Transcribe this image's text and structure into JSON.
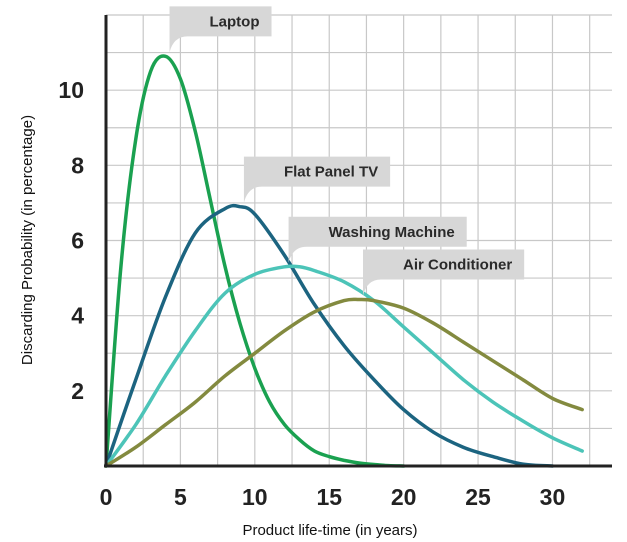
{
  "chart_data": {
    "type": "line",
    "title": "",
    "xlabel": "Product life-time (in years)",
    "ylabel": "Discarding Probability (in percentage)",
    "xlim": [
      0,
      34
    ],
    "ylim": [
      0,
      12
    ],
    "x_ticks": [
      "0",
      "5",
      "10",
      "15",
      "20",
      "25",
      "30"
    ],
    "y_ticks": [
      "2",
      "4",
      "6",
      "8",
      "10"
    ],
    "grid": true,
    "legend": "callout labels at each curve peak",
    "series": [
      {
        "name": "Laptop",
        "color": "#1aa150",
        "x": [
          0,
          1,
          2,
          3,
          4,
          5,
          6,
          7,
          8,
          9,
          10,
          11,
          12,
          13,
          14,
          15,
          16,
          17,
          18,
          19,
          20
        ],
        "values": [
          0,
          5.3,
          8.7,
          10.5,
          10.9,
          10.3,
          8.9,
          7.1,
          5.3,
          3.8,
          2.6,
          1.7,
          1.1,
          0.7,
          0.4,
          0.25,
          0.15,
          0.08,
          0.04,
          0.01,
          0
        ]
      },
      {
        "name": "Flat Panel TV",
        "color": "#1c6480",
        "x": [
          0,
          2,
          4,
          6,
          8,
          9,
          10,
          12,
          14,
          16,
          18,
          20,
          22,
          24,
          26,
          28,
          30
        ],
        "values": [
          0,
          2.3,
          4.5,
          6.2,
          6.85,
          6.9,
          6.7,
          5.6,
          4.3,
          3.2,
          2.3,
          1.5,
          0.9,
          0.5,
          0.25,
          0.05,
          0
        ]
      },
      {
        "name": "Washing Machine",
        "color": "#4cc4b8",
        "x": [
          0,
          2,
          4,
          6,
          8,
          10,
          12,
          13,
          14,
          16,
          18,
          20,
          22,
          24,
          26,
          28,
          30,
          32
        ],
        "values": [
          0,
          1.1,
          2.4,
          3.6,
          4.6,
          5.1,
          5.3,
          5.3,
          5.2,
          4.9,
          4.4,
          3.7,
          3.0,
          2.3,
          1.7,
          1.2,
          0.75,
          0.4
        ]
      },
      {
        "name": "Air Conditioner",
        "color": "#838a3f",
        "x": [
          0,
          2,
          4,
          6,
          8,
          10,
          12,
          14,
          16,
          17,
          18,
          20,
          22,
          24,
          26,
          28,
          30,
          32
        ],
        "values": [
          0,
          0.5,
          1.1,
          1.7,
          2.4,
          3.0,
          3.6,
          4.1,
          4.4,
          4.43,
          4.4,
          4.2,
          3.8,
          3.3,
          2.8,
          2.3,
          1.8,
          1.5
        ]
      }
    ]
  }
}
